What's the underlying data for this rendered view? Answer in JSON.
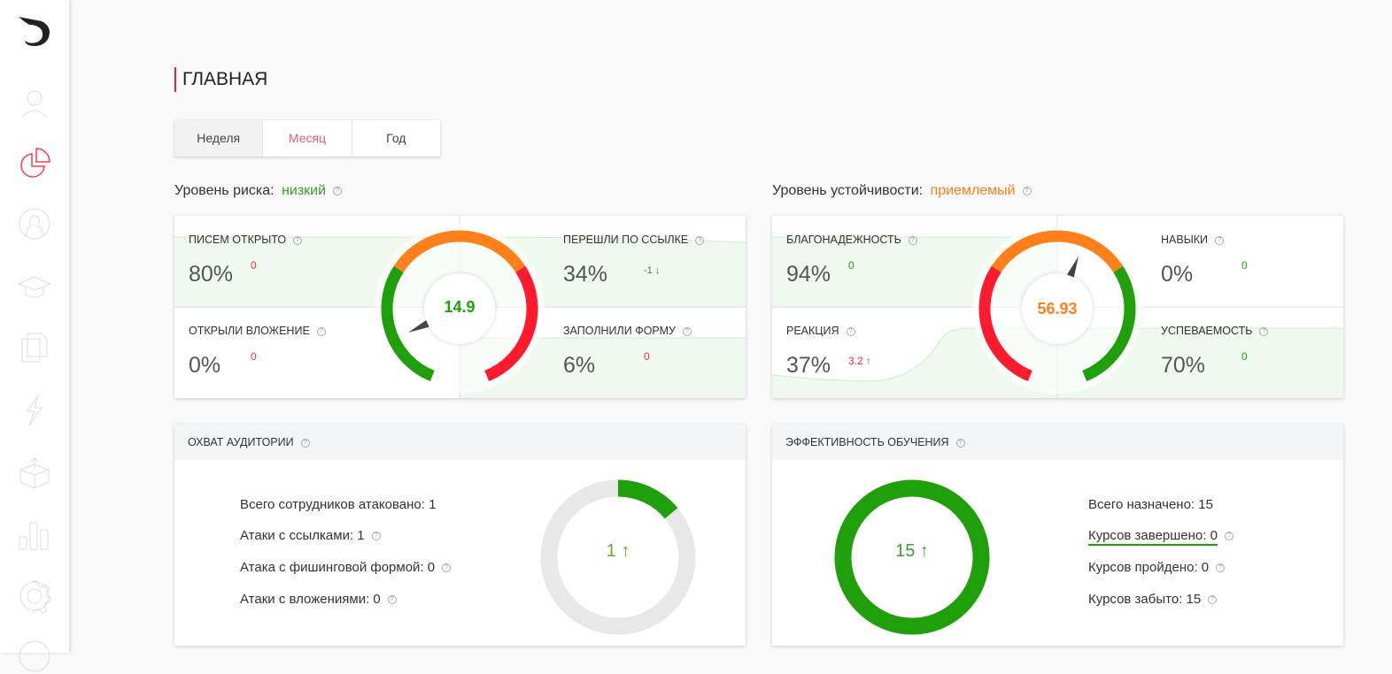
{
  "sidebar": {
    "items": [
      {
        "icon": "dragon-logo-icon"
      },
      {
        "icon": "user-icon"
      },
      {
        "icon": "pie-chart-icon",
        "active": true
      },
      {
        "icon": "profile-icon"
      },
      {
        "icon": "graduation-cap-icon"
      },
      {
        "icon": "documents-icon"
      },
      {
        "icon": "lightning-icon"
      },
      {
        "icon": "box-icon"
      },
      {
        "icon": "bar-chart-icon"
      },
      {
        "icon": "gear-icon"
      },
      {
        "icon": "help-icon"
      }
    ]
  },
  "page_title": "ГЛАВНАЯ",
  "tabs": [
    {
      "label": "Неделя",
      "active": true
    },
    {
      "label": "Месяц"
    },
    {
      "label": "Год"
    }
  ],
  "risk": {
    "label": "Уровень риска:",
    "value": "низкий",
    "value_color": "#3aa02a",
    "score": "14.9",
    "metrics": [
      {
        "label": "ПИСЕМ ОТКРЫТО",
        "value": "80%",
        "delta": "0"
      },
      {
        "label": "ПЕРЕШЛИ ПО ССЫЛКЕ",
        "value": "34%",
        "delta": "-1 ↓"
      },
      {
        "label": "ОТКРЫЛИ ВЛОЖЕНИЕ",
        "value": "0%",
        "delta": "0"
      },
      {
        "label": "ЗАПОЛНИЛИ ФОРМУ",
        "value": "6%",
        "delta": "0"
      }
    ]
  },
  "resilience": {
    "label": "Уровень устойчивости:",
    "value": "приемлемый",
    "value_color": "#ff7f1b",
    "score": "56.93",
    "metrics": [
      {
        "label": "БЛАГОНАДЕЖНОСТЬ",
        "value": "94%",
        "delta": "0"
      },
      {
        "label": "НАВЫКИ",
        "value": "0%",
        "delta": "0"
      },
      {
        "label": "РЕАКЦИЯ",
        "value": "37%",
        "delta": "3.2 ↑"
      },
      {
        "label": "УСПЕВАЕМОСТЬ",
        "value": "70%",
        "delta": "0"
      }
    ]
  },
  "audience": {
    "title": "ОХВАТ АУДИТОРИИ",
    "stats": [
      "Всего сотрудников атаковано: 1",
      "Атаки с ссылками: 1",
      "Атака с фишинговой формой: 0",
      "Атаки с вложениями: 0"
    ],
    "center": "1 ↑",
    "fill_fraction": 0.14
  },
  "training": {
    "title": "ЭФФЕКТИВНОСТЬ ОБУЧЕНИЯ",
    "stats": [
      "Всего назначено: 15",
      "Курсов завершено: 0",
      "Курсов пройдено: 0",
      "Курсов забыто: 15"
    ],
    "center": "15 ↑",
    "fill_fraction": 1
  },
  "colors": {
    "green": "#1fa00a",
    "orange": "#ff7f1b",
    "red": "#ff1a2e",
    "accent": "#e8262f"
  }
}
